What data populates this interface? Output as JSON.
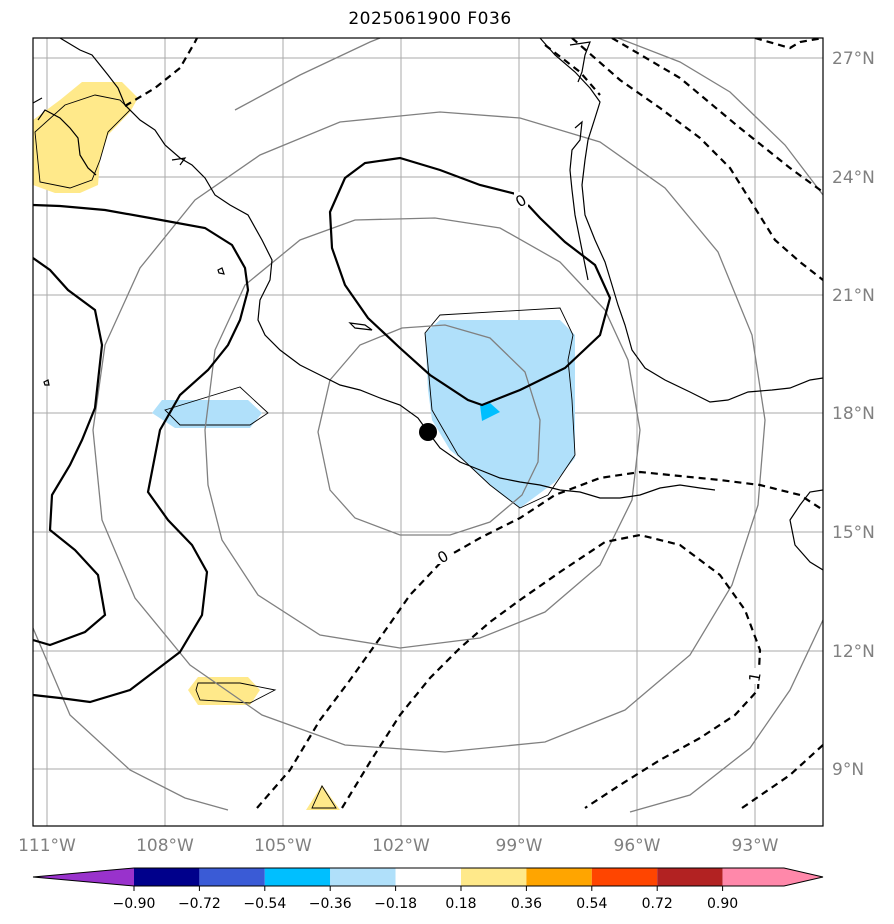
{
  "title": "2025061900 F036",
  "lat_labels": [
    "27°N",
    "24°N",
    "21°N",
    "18°N",
    "15°N",
    "12°N",
    "9°N"
  ],
  "lon_labels": [
    "111°W",
    "108°W",
    "105°W",
    "102°W",
    "99°W",
    "96°W",
    "93°W"
  ],
  "contour_labels": [
    "0",
    "0",
    "1"
  ],
  "colorbar": {
    "tick_labels": [
      "−0.90",
      "−0.72",
      "−0.54",
      "−0.36",
      "−0.18",
      "0.18",
      "0.36",
      "0.54",
      "0.72",
      "0.90"
    ],
    "colors": [
      "#9932cc",
      "#00008b",
      "#3a5bd6",
      "#00bfff",
      "#b0e0fa",
      "#ffffff",
      "#ffe98a",
      "#ffa500",
      "#ff4500",
      "#b22222",
      "#ff88aa"
    ]
  },
  "center_marker": {
    "lat": 17.5,
    "lon": -101.3
  },
  "colors": {
    "grid": "#aaaaaa",
    "range_rings": "#808080",
    "coastline": "#000000",
    "light_blue": "#b0e0fa",
    "deep_sky_blue": "#00bfff",
    "yellow": "#ffe98a"
  }
}
